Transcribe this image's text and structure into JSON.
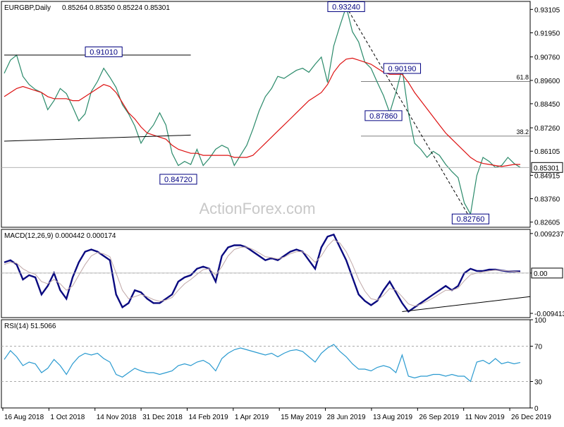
{
  "chart_data": [
    {
      "panel": "price",
      "type": "line",
      "title": "EURGBP,Daily",
      "ohlc": "0.85264 0.85350 0.85224 0.85301",
      "watermark": "ActionForex.com",
      "y_ticks": [
        "0.93105",
        "0.91950",
        "0.90760",
        "0.89600",
        "0.88450",
        "0.87260",
        "0.86105",
        "0.84915",
        "0.83760",
        "0.82605"
      ],
      "ylim": [
        0.8235,
        0.935
      ],
      "last_price": "0.85301",
      "series": [
        {
          "name": "",
          "role": "price",
          "color": "#2a8a6a",
          "values": [
            0.8995,
            0.906,
            0.9085,
            0.898,
            0.894,
            0.8915,
            0.89,
            0.8815,
            0.886,
            0.892,
            0.8895,
            0.883,
            0.876,
            0.8795,
            0.8905,
            0.8955,
            0.902,
            0.8975,
            0.8925,
            0.884,
            0.8795,
            0.8735,
            0.865,
            0.87,
            0.874,
            0.88,
            0.874,
            0.86,
            0.854,
            0.856,
            0.8545,
            0.862,
            0.854,
            0.8575,
            0.862,
            0.864,
            0.8625,
            0.854,
            0.859,
            0.864,
            0.872,
            0.881,
            0.888,
            0.892,
            0.898,
            0.897,
            0.899,
            0.901,
            0.902,
            0.9,
            0.904,
            0.9075,
            0.895,
            0.913,
            0.923,
            0.9324,
            0.92,
            0.915,
            0.905,
            0.902,
            0.895,
            0.8885,
            0.88,
            0.89,
            0.9019,
            0.88,
            0.865,
            0.862,
            0.858,
            0.861,
            0.859,
            0.8545,
            0.851,
            0.848,
            0.8355,
            0.83,
            0.849,
            0.858,
            0.856,
            0.853,
            0.854,
            0.858,
            0.855,
            0.853
          ]
        },
        {
          "name": "",
          "role": "moving-average",
          "color": "#dd1111",
          "values": [
            0.888,
            0.89,
            0.892,
            0.893,
            0.892,
            0.891,
            0.89,
            0.888,
            0.887,
            0.887,
            0.887,
            0.886,
            0.886,
            0.888,
            0.89,
            0.892,
            0.894,
            0.893,
            0.89,
            0.885,
            0.88,
            0.877,
            0.873,
            0.87,
            0.869,
            0.868,
            0.867,
            0.864,
            0.862,
            0.861,
            0.86,
            0.86,
            0.859,
            0.859,
            0.859,
            0.859,
            0.859,
            0.858,
            0.858,
            0.858,
            0.859,
            0.862,
            0.865,
            0.868,
            0.871,
            0.874,
            0.877,
            0.88,
            0.883,
            0.886,
            0.888,
            0.89,
            0.894,
            0.9,
            0.904,
            0.9065,
            0.907,
            0.906,
            0.905,
            0.904,
            0.902,
            0.9,
            0.899,
            0.899,
            0.899,
            0.895,
            0.89,
            0.886,
            0.882,
            0.878,
            0.874,
            0.87,
            0.867,
            0.864,
            0.861,
            0.858,
            0.856,
            0.855,
            0.8545,
            0.854,
            0.8535,
            0.854,
            0.8545,
            0.8545
          ]
        }
      ],
      "annotations": [
        {
          "label": "0.93240",
          "x_index": 55,
          "value": 0.9324
        },
        {
          "label": "0.91010",
          "x_index": 16,
          "value": 0.9101
        },
        {
          "label": "0.90190",
          "x_index": 64,
          "value": 0.9019
        },
        {
          "label": "0.87860",
          "x_index": 61,
          "value": 0.8786
        },
        {
          "label": "0.84720",
          "x_index": 28,
          "value": 0.8472
        },
        {
          "label": "0.82760",
          "x_index": 75,
          "value": 0.8276
        }
      ],
      "fibonacci": [
        {
          "label": "61.8",
          "value": 0.8955
        },
        {
          "label": "38.2",
          "value": 0.8685
        }
      ],
      "trendlines": [
        {
          "from": {
            "x_index": 0,
            "value": 0.9085
          },
          "to": {
            "x_index": 30,
            "value": 0.9085
          }
        },
        {
          "from": {
            "x_index": 0,
            "value": 0.866
          },
          "to": {
            "x_index": 30,
            "value": 0.869
          }
        },
        {
          "from": {
            "x_index": 55,
            "value": 0.9324
          },
          "to": {
            "x_index": 75,
            "value": 0.8276
          },
          "dashed": true
        }
      ]
    },
    {
      "panel": "macd",
      "type": "line",
      "title": "MACD(12,26,9) 0.000442 0.000174",
      "y_ticks": [
        "0.009237",
        "0.00",
        "-0.009413"
      ],
      "ylim": [
        -0.0104,
        0.0102
      ],
      "last_value": "0.00",
      "series": [
        {
          "name": "",
          "role": "macd",
          "color": "#0a0a80",
          "values": [
            0.0025,
            0.003,
            0.002,
            -0.0015,
            -0.0005,
            -0.001,
            -0.005,
            -0.003,
            0.0,
            -0.004,
            -0.006,
            -0.001,
            0.0025,
            0.005,
            0.0055,
            0.005,
            0.004,
            0.003,
            -0.005,
            -0.008,
            -0.007,
            -0.004,
            -0.0045,
            -0.006,
            -0.007,
            -0.007,
            -0.006,
            -0.005,
            -0.002,
            -0.001,
            -0.0005,
            0.001,
            0.0015,
            0.001,
            -0.002,
            0.004,
            0.006,
            0.0065,
            0.0065,
            0.006,
            0.005,
            0.004,
            0.003,
            0.0035,
            0.003,
            0.004,
            0.005,
            0.0055,
            0.005,
            0.003,
            0.001,
            0.006,
            0.0085,
            0.009,
            0.006,
            0.003,
            -0.001,
            -0.005,
            -0.0065,
            -0.0075,
            -0.0065,
            -0.004,
            -0.002,
            -0.0045,
            -0.007,
            -0.009,
            -0.008,
            -0.007,
            -0.006,
            -0.005,
            -0.004,
            -0.003,
            -0.004,
            -0.003,
            0.0,
            0.001,
            0.0005,
            0.0005,
            0.0008,
            0.0008,
            0.0006,
            0.0004,
            0.0004,
            0.0004
          ]
        },
        {
          "name": "",
          "role": "signal",
          "color": "#c0a8a8",
          "values": [
            0.002,
            0.0025,
            0.0023,
            0.001,
            0.0002,
            -0.0003,
            -0.002,
            -0.0025,
            -0.0015,
            -0.0025,
            -0.004,
            -0.003,
            -0.0005,
            0.002,
            0.004,
            0.0048,
            0.0045,
            0.0038,
            0.0,
            -0.004,
            -0.006,
            -0.0055,
            -0.005,
            -0.0055,
            -0.0062,
            -0.0066,
            -0.0063,
            -0.0057,
            -0.004,
            -0.0025,
            -0.0015,
            -0.0003,
            0.0008,
            0.001,
            -0.0005,
            0.0015,
            0.004,
            0.0055,
            0.006,
            0.0061,
            0.0055,
            0.0047,
            0.0038,
            0.0036,
            0.0033,
            0.0037,
            0.0045,
            0.005,
            0.005,
            0.004,
            0.0025,
            0.004,
            0.0063,
            0.0078,
            0.007,
            0.005,
            0.002,
            -0.0015,
            -0.0042,
            -0.006,
            -0.0063,
            -0.0052,
            -0.0036,
            -0.004,
            -0.0055,
            -0.0072,
            -0.0077,
            -0.0073,
            -0.0066,
            -0.0058,
            -0.0049,
            -0.004,
            -0.004,
            -0.0035,
            -0.0018,
            -0.0004,
            0.0,
            0.0003,
            0.0005,
            0.0007,
            0.0006,
            0.0005,
            0.0004,
            0.0002
          ]
        }
      ],
      "trendlines": [
        {
          "from": {
            "x_index": 64,
            "value": -0.009
          },
          "to": {
            "x_index": 84,
            "value": -0.0055
          }
        }
      ]
    },
    {
      "panel": "rsi",
      "type": "line",
      "title": "RSI(14) 51.5066",
      "y_ticks": [
        "100",
        "70",
        "30",
        "0"
      ],
      "ylim": [
        0,
        100
      ],
      "levels": [
        70,
        30
      ],
      "series": [
        {
          "name": "",
          "role": "rsi",
          "color": "#2a9ad0",
          "values": [
            55,
            65,
            58,
            48,
            52,
            50,
            40,
            45,
            55,
            48,
            38,
            50,
            58,
            62,
            60,
            62,
            56,
            52,
            38,
            35,
            40,
            45,
            42,
            40,
            40,
            38,
            40,
            42,
            48,
            50,
            48,
            52,
            54,
            50,
            42,
            56,
            62,
            66,
            68,
            66,
            64,
            62,
            60,
            62,
            58,
            62,
            65,
            66,
            64,
            58,
            52,
            62,
            68,
            72,
            64,
            58,
            50,
            44,
            44,
            42,
            46,
            48,
            46,
            40,
            60,
            36,
            34,
            36,
            36,
            38,
            38,
            36,
            38,
            36,
            36,
            30,
            52,
            54,
            50,
            56,
            50,
            52,
            50,
            51.5
          ]
        }
      ]
    }
  ],
  "x_axis": {
    "labels": [
      "16 Aug 2018",
      "1 Oct 2018",
      "14 Nov 2018",
      "31 Dec 2018",
      "14 Feb 2019",
      "1 Apr 2019",
      "15 May 2019",
      "28 Jun 2019",
      "13 Aug 2019",
      "26 Sep 2019",
      "11 Nov 2019",
      "26 Dec 2019"
    ]
  },
  "colors": {
    "axis": "#000000",
    "grid": "#d8d8d8",
    "label_box_border": "#000080",
    "watermark": "#c8c8c8"
  }
}
